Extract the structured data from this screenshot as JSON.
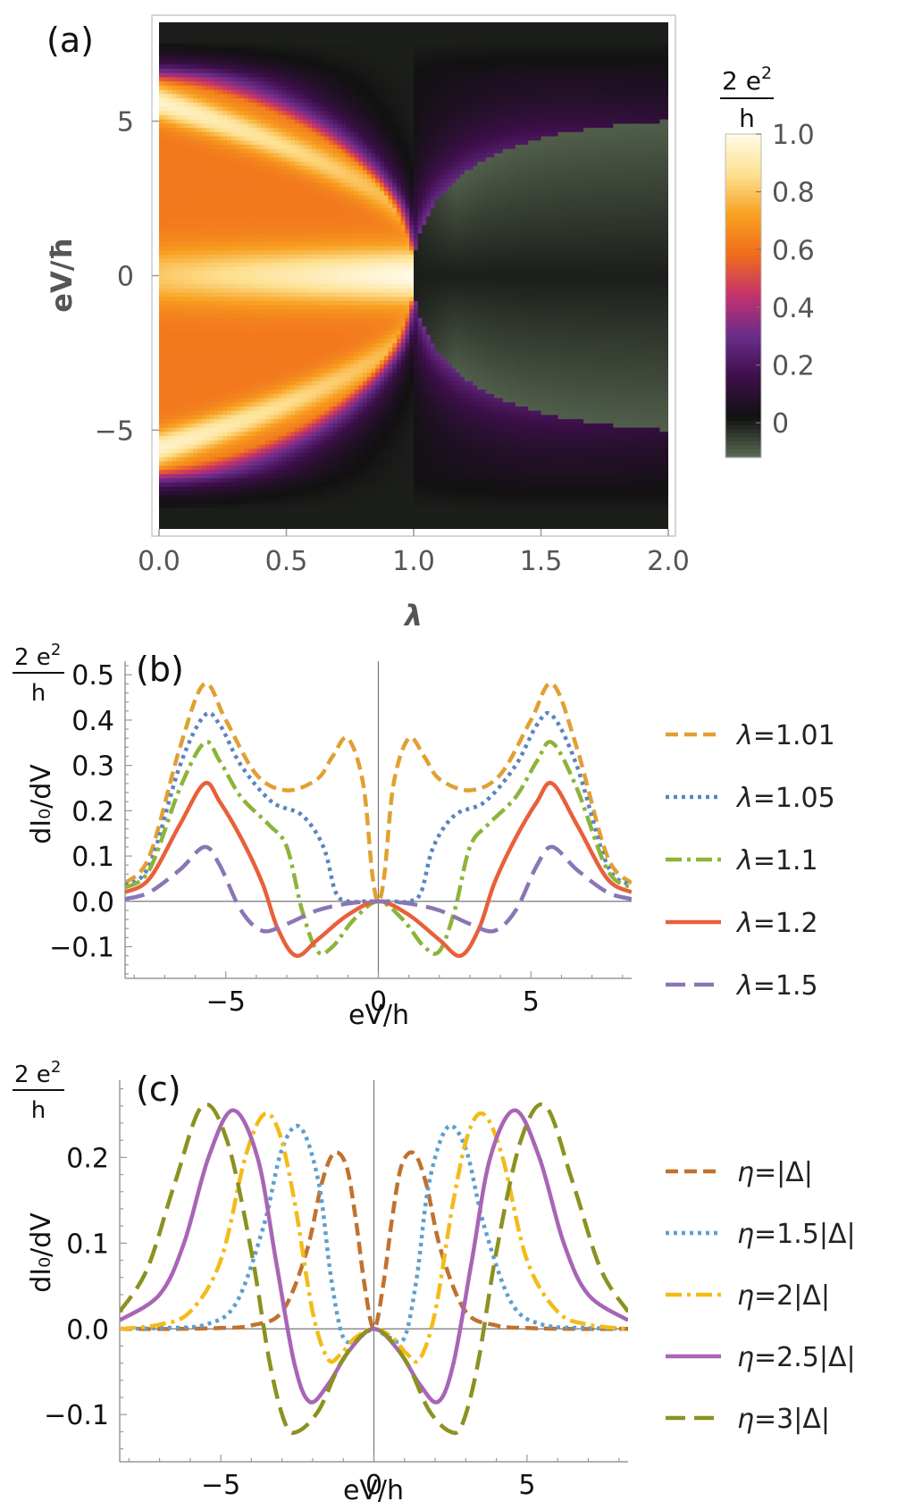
{
  "chart_data": [
    {
      "panel": "(a)",
      "type": "heatmap",
      "xlabel": "λ",
      "ylabel": "eV/ħ",
      "xlim": [
        0.0,
        2.0
      ],
      "ylim": [
        -8.2,
        8.2
      ],
      "xticks": [
        "0.0",
        "0.5",
        "1.0",
        "1.5",
        "2.0"
      ],
      "yticks": [
        {
          "v": 5,
          "t": "5"
        },
        {
          "v": 0,
          "t": "0"
        },
        {
          "v": -5,
          "t": "−5"
        }
      ],
      "colorbar": {
        "unit_num": "2 e",
        "unit_sup": "2",
        "unit_den": "h",
        "range": [
          -0.12,
          1.0
        ],
        "ticks": [
          {
            "v": 1.0,
            "t": "1.0"
          },
          {
            "v": 0.8,
            "t": "0.8"
          },
          {
            "v": 0.6,
            "t": "0.6"
          },
          {
            "v": 0.4,
            "t": "0.4"
          },
          {
            "v": 0.2,
            "t": "0.2"
          },
          {
            "v": 0,
            "t": "0"
          }
        ],
        "colormap": [
          "#5c6b55",
          "#111111",
          "#3d0f4a",
          "#6a2c8a",
          "#c3326f",
          "#f06a1c",
          "#f8a020",
          "#fde090",
          "#fffbe8"
        ]
      }
    },
    {
      "panel": "(b)",
      "type": "line",
      "xlabel": "eV/h",
      "ylabel": "dI₀/dV",
      "unit_num": "2 e",
      "unit_sup": "2",
      "unit_den": "h",
      "xlim": [
        -8.3,
        8.3
      ],
      "ylim": [
        -0.17,
        0.53
      ],
      "xticks": [
        {
          "v": -5,
          "t": "−5"
        },
        {
          "v": 0,
          "t": "0"
        },
        {
          "v": 5,
          "t": "5"
        }
      ],
      "yticks": [
        {
          "v": 0.5,
          "t": "0.5"
        },
        {
          "v": 0.4,
          "t": "0.4"
        },
        {
          "v": 0.3,
          "t": "0.3"
        },
        {
          "v": 0.2,
          "t": "0.2"
        },
        {
          "v": 0.1,
          "t": "0.1"
        },
        {
          "v": 0.0,
          "t": "0.0"
        },
        {
          "v": -0.1,
          "t": "−0.1"
        }
      ],
      "series": [
        {
          "name": "λ=1.01",
          "sym": "λ",
          "val": "=1.01",
          "color": "#e1a033",
          "dash": "14,7",
          "x": [
            0,
            0.2,
            0.5,
            1.0,
            1.5,
            2,
            3,
            4,
            5,
            5.7,
            6.5,
            7.5,
            8.3
          ],
          "y": [
            0.0,
            0.06,
            0.26,
            0.36,
            0.32,
            0.27,
            0.245,
            0.28,
            0.4,
            0.48,
            0.34,
            0.1,
            0.04
          ]
        },
        {
          "name": "λ=1.05",
          "sym": "λ",
          "val": "=1.05",
          "color": "#5b84c1",
          "dash": "4,5",
          "x": [
            0,
            0.5,
            1,
            1.4,
            1.8,
            2.5,
            3.5,
            4.5,
            5.2,
            5.7,
            6.5,
            7.5,
            8.3
          ],
          "y": [
            0.0,
            0.0,
            0.0,
            0.02,
            0.12,
            0.19,
            0.22,
            0.3,
            0.39,
            0.41,
            0.3,
            0.08,
            0.035
          ]
        },
        {
          "name": "λ=1.1",
          "sym": "λ",
          "val": "=1.1",
          "color": "#8db43a",
          "dash": "18,6,4,6",
          "x": [
            0,
            0.8,
            1.5,
            2,
            2.5,
            3,
            3.6,
            4.5,
            5.2,
            5.7,
            6.5,
            7.5,
            8.3
          ],
          "y": [
            0.0,
            -0.04,
            -0.1,
            -0.11,
            -0.02,
            0.12,
            0.17,
            0.23,
            0.31,
            0.35,
            0.25,
            0.07,
            0.03
          ]
        },
        {
          "name": "λ=1.2",
          "sym": "λ",
          "val": "=1.2",
          "color": "#e8603a",
          "dash": "",
          "x": [
            0,
            1,
            2,
            2.7,
            3.3,
            3.8,
            4.5,
            5.2,
            5.7,
            6.5,
            7.5,
            8.3
          ],
          "y": [
            0.0,
            -0.03,
            -0.085,
            -0.12,
            -0.06,
            0.04,
            0.14,
            0.22,
            0.26,
            0.17,
            0.05,
            0.02
          ]
        },
        {
          "name": "λ=1.5",
          "sym": "λ",
          "val": "=1.5",
          "color": "#8a76b5",
          "dash": "22,10",
          "x": [
            0,
            1,
            2,
            3,
            3.8,
            4.5,
            5.2,
            5.7,
            6.5,
            7.5,
            8.3
          ],
          "y": [
            0.0,
            -0.005,
            -0.02,
            -0.05,
            -0.065,
            -0.02,
            0.08,
            0.12,
            0.07,
            0.02,
            0.005
          ]
        }
      ]
    },
    {
      "panel": "(c)",
      "type": "line",
      "xlabel": "eV/h",
      "ylabel": "dI₀/dV",
      "unit_num": "2 e",
      "unit_sup": "2",
      "unit_den": "h",
      "xlim": [
        -8.3,
        8.3
      ],
      "ylim": [
        -0.155,
        0.29
      ],
      "xticks": [
        {
          "v": -5,
          "t": "−5"
        },
        {
          "v": 0,
          "t": "0"
        },
        {
          "v": 5,
          "t": "5"
        }
      ],
      "yticks": [
        {
          "v": 0.2,
          "t": "0.2"
        },
        {
          "v": 0.1,
          "t": "0.1"
        },
        {
          "v": 0.0,
          "t": "0.0"
        },
        {
          "v": -0.1,
          "t": "−0.1"
        }
      ],
      "series": [
        {
          "name": "η=|Δ|",
          "sym": "η",
          "val": "=|Δ|",
          "color": "#c0722d",
          "dash": "14,7",
          "x": [
            0,
            0.3,
            0.6,
            0.9,
            1.3,
            1.7,
            2.2,
            3,
            4,
            5,
            6.5,
            8.3
          ],
          "y": [
            0.0,
            0.05,
            0.13,
            0.19,
            0.205,
            0.17,
            0.09,
            0.02,
            0.004,
            0.001,
            0.0,
            0.0
          ]
        },
        {
          "name": "η=1.5|Δ|",
          "sym": "η",
          "val": "=1.5|Δ|",
          "color": "#5aa0d2",
          "dash": "4,5",
          "x": [
            0,
            0.5,
            1,
            1.4,
            1.8,
            2.4,
            3,
            3.6,
            4.5,
            5.5,
            7,
            8.3
          ],
          "y": [
            0.0,
            -0.01,
            -0.01,
            0.06,
            0.17,
            0.235,
            0.21,
            0.12,
            0.03,
            0.005,
            0.001,
            0.0
          ]
        },
        {
          "name": "η=2|Δ|",
          "sym": "η",
          "val": "=2|Δ|",
          "color": "#f3bb1a",
          "dash": "18,6,4,6",
          "x": [
            0,
            0.6,
            1.1,
            1.5,
            2,
            2.6,
            3.1,
            3.6,
            4.2,
            5,
            6,
            7,
            8.3
          ],
          "y": [
            0.0,
            -0.01,
            -0.03,
            -0.035,
            0.02,
            0.15,
            0.23,
            0.25,
            0.2,
            0.08,
            0.02,
            0.005,
            0.0
          ]
        },
        {
          "name": "η=2.5|Δ|",
          "sym": "η",
          "val": "=2.5|Δ|",
          "color": "#a865b5",
          "dash": "",
          "x": [
            0,
            0.8,
            1.5,
            2.1,
            2.6,
            3.2,
            3.8,
            4.6,
            5.4,
            6.2,
            7,
            8.3
          ],
          "y": [
            0.0,
            -0.025,
            -0.065,
            -0.085,
            -0.04,
            0.08,
            0.2,
            0.255,
            0.2,
            0.1,
            0.04,
            0.01
          ]
        },
        {
          "name": "η=3|Δ|",
          "sym": "η",
          "val": "=3|Δ|",
          "color": "#8c9120",
          "dash": "22,10",
          "x": [
            0,
            1,
            1.8,
            2.5,
            2.9,
            3.4,
            4,
            4.8,
            5.6,
            6.5,
            7.4,
            8.3
          ],
          "y": [
            0.0,
            -0.035,
            -0.095,
            -0.12,
            -0.11,
            -0.04,
            0.09,
            0.22,
            0.26,
            0.17,
            0.07,
            0.02
          ]
        }
      ]
    }
  ]
}
